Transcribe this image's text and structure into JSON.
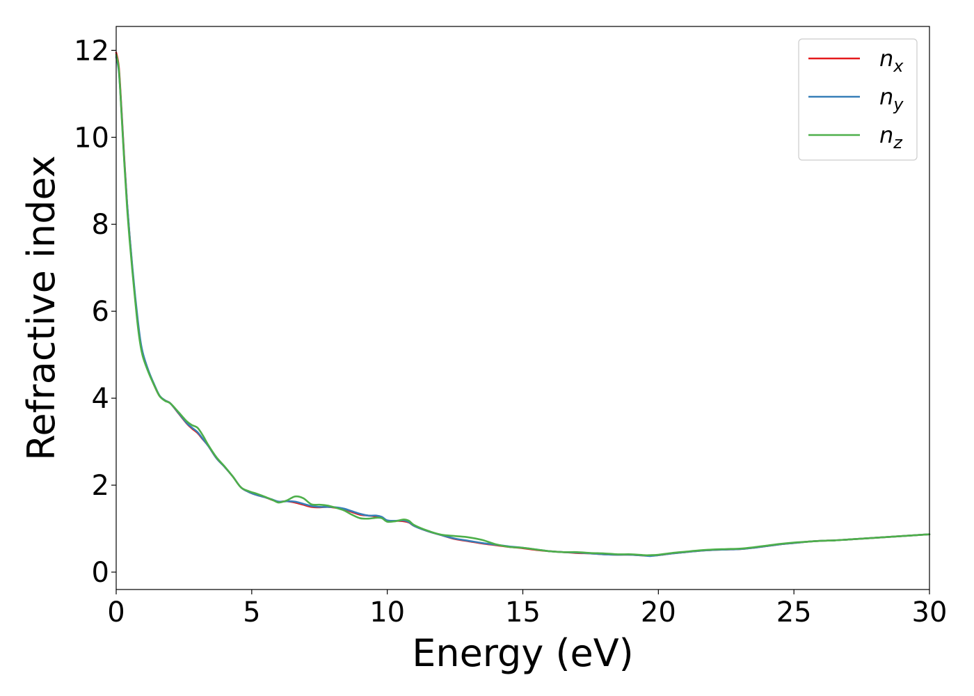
{
  "chart_data": {
    "type": "line",
    "title": "",
    "xlabel": "Energy (eV)",
    "ylabel": "Refractive index",
    "xlim": [
      0,
      30
    ],
    "ylim": [
      -0.4,
      12.55
    ],
    "xticks": [
      0,
      5,
      10,
      15,
      20,
      25,
      30
    ],
    "xtick_labels": [
      "0",
      "5",
      "10",
      "15",
      "20",
      "25",
      "30"
    ],
    "yticks": [
      0,
      2,
      4,
      6,
      8,
      10,
      12
    ],
    "ytick_labels": [
      "0",
      "2",
      "4",
      "6",
      "8",
      "10",
      "12"
    ],
    "grid": false,
    "legend_position": "top-right",
    "series": [
      {
        "name": "n_x",
        "label_base": "n",
        "label_sub": "x",
        "color": "#e41a1c",
        "x": [
          0,
          0.1,
          0.2,
          0.3,
          0.4,
          0.5,
          0.6,
          0.7,
          0.8,
          0.9,
          1.0,
          1.2,
          1.4,
          1.6,
          1.8,
          2.0,
          2.3,
          2.6,
          2.8,
          3.0,
          3.2,
          3.4,
          3.7,
          4.0,
          4.3,
          4.6,
          4.9,
          5.2,
          5.5,
          5.8,
          6.0,
          6.3,
          6.6,
          6.9,
          7.2,
          7.5,
          7.8,
          8.1,
          8.4,
          8.7,
          9.0,
          9.3,
          9.6,
          9.8,
          10.0,
          10.3,
          10.6,
          10.8,
          11.0,
          11.5,
          12.0,
          12.5,
          13.0,
          13.5,
          14.0,
          14.5,
          15.0,
          15.5,
          16.0,
          16.5,
          17.0,
          17.5,
          18.0,
          18.5,
          19.0,
          19.5,
          19.7,
          20.0,
          20.5,
          21.0,
          21.5,
          22.0,
          22.5,
          23.0,
          23.5,
          24.0,
          24.5,
          25.0,
          25.5,
          26.0,
          26.5,
          27.0,
          27.5,
          28.0,
          28.5,
          29.0,
          29.5,
          30.0
        ],
        "y": [
          11.95,
          11.6,
          10.6,
          9.5,
          8.5,
          7.7,
          6.95,
          6.3,
          5.7,
          5.25,
          4.95,
          4.6,
          4.3,
          4.05,
          3.95,
          3.88,
          3.65,
          3.42,
          3.3,
          3.2,
          3.05,
          2.9,
          2.62,
          2.42,
          2.2,
          1.95,
          1.84,
          1.77,
          1.72,
          1.65,
          1.62,
          1.63,
          1.6,
          1.55,
          1.5,
          1.49,
          1.5,
          1.48,
          1.45,
          1.38,
          1.32,
          1.3,
          1.28,
          1.25,
          1.18,
          1.18,
          1.17,
          1.14,
          1.06,
          0.94,
          0.85,
          0.76,
          0.71,
          0.66,
          0.62,
          0.58,
          0.55,
          0.51,
          0.48,
          0.46,
          0.44,
          0.43,
          0.41,
          0.4,
          0.4,
          0.38,
          0.38,
          0.39,
          0.43,
          0.46,
          0.49,
          0.51,
          0.52,
          0.53,
          0.56,
          0.6,
          0.64,
          0.67,
          0.7,
          0.72,
          0.73,
          0.75,
          0.77,
          0.79,
          0.81,
          0.83,
          0.85,
          0.87
        ]
      },
      {
        "name": "n_y",
        "label_base": "n",
        "label_sub": "y",
        "color": "#377eb8",
        "x": [
          0,
          0.1,
          0.2,
          0.3,
          0.4,
          0.5,
          0.6,
          0.7,
          0.8,
          0.9,
          1.0,
          1.2,
          1.4,
          1.6,
          1.8,
          2.0,
          2.3,
          2.6,
          2.8,
          3.0,
          3.2,
          3.4,
          3.7,
          4.0,
          4.3,
          4.6,
          4.9,
          5.2,
          5.5,
          5.8,
          6.0,
          6.3,
          6.6,
          6.9,
          7.2,
          7.5,
          7.8,
          8.1,
          8.4,
          8.7,
          9.0,
          9.3,
          9.6,
          9.8,
          10.0,
          10.3,
          10.6,
          10.8,
          11.0,
          11.5,
          12.0,
          12.5,
          13.0,
          13.5,
          14.0,
          14.5,
          15.0,
          15.5,
          16.0,
          16.5,
          17.0,
          17.5,
          18.0,
          18.5,
          19.0,
          19.5,
          19.7,
          20.0,
          20.5,
          21.0,
          21.5,
          22.0,
          22.5,
          23.0,
          23.5,
          24.0,
          24.5,
          25.0,
          25.5,
          26.0,
          26.5,
          27.0,
          27.5,
          28.0,
          28.5,
          29.0,
          29.5,
          30.0
        ],
        "y": [
          11.85,
          11.5,
          10.55,
          9.45,
          8.5,
          7.7,
          7.0,
          6.35,
          5.78,
          5.3,
          5.0,
          4.62,
          4.32,
          4.06,
          3.95,
          3.88,
          3.66,
          3.43,
          3.32,
          3.22,
          3.06,
          2.9,
          2.62,
          2.42,
          2.2,
          1.95,
          1.84,
          1.77,
          1.72,
          1.66,
          1.62,
          1.63,
          1.62,
          1.57,
          1.52,
          1.5,
          1.5,
          1.49,
          1.46,
          1.4,
          1.34,
          1.3,
          1.3,
          1.27,
          1.19,
          1.18,
          1.19,
          1.15,
          1.06,
          0.94,
          0.85,
          0.77,
          0.72,
          0.67,
          0.63,
          0.59,
          0.56,
          0.52,
          0.48,
          0.46,
          0.45,
          0.43,
          0.41,
          0.4,
          0.4,
          0.38,
          0.37,
          0.39,
          0.43,
          0.46,
          0.49,
          0.51,
          0.52,
          0.53,
          0.56,
          0.6,
          0.64,
          0.67,
          0.7,
          0.72,
          0.73,
          0.75,
          0.77,
          0.79,
          0.81,
          0.83,
          0.85,
          0.87
        ]
      },
      {
        "name": "n_z",
        "label_base": "n",
        "label_sub": "z",
        "color": "#4daf4a",
        "x": [
          0,
          0.1,
          0.2,
          0.3,
          0.4,
          0.5,
          0.6,
          0.7,
          0.8,
          0.9,
          1.0,
          1.2,
          1.4,
          1.6,
          1.8,
          2.0,
          2.3,
          2.6,
          2.8,
          3.0,
          3.2,
          3.4,
          3.7,
          4.0,
          4.3,
          4.6,
          4.9,
          5.2,
          5.5,
          5.8,
          6.0,
          6.3,
          6.6,
          6.9,
          7.2,
          7.5,
          7.8,
          8.1,
          8.4,
          8.7,
          9.0,
          9.3,
          9.6,
          9.8,
          10.0,
          10.3,
          10.6,
          10.8,
          11.0,
          11.5,
          12.0,
          12.5,
          13.0,
          13.5,
          14.0,
          14.5,
          15.0,
          15.5,
          16.0,
          16.5,
          17.0,
          17.5,
          18.0,
          18.5,
          19.0,
          19.5,
          19.7,
          20.0,
          20.5,
          21.0,
          21.5,
          22.0,
          22.5,
          23.0,
          23.5,
          24.0,
          24.5,
          25.0,
          25.5,
          26.0,
          26.5,
          27.0,
          27.5,
          28.0,
          28.5,
          29.0,
          29.5,
          30.0
        ],
        "y": [
          11.9,
          11.55,
          10.5,
          9.4,
          8.4,
          7.6,
          6.9,
          6.25,
          5.65,
          5.2,
          4.92,
          4.58,
          4.3,
          4.05,
          3.94,
          3.88,
          3.68,
          3.47,
          3.38,
          3.32,
          3.14,
          2.92,
          2.64,
          2.43,
          2.2,
          1.95,
          1.86,
          1.8,
          1.73,
          1.65,
          1.6,
          1.65,
          1.74,
          1.7,
          1.56,
          1.55,
          1.53,
          1.48,
          1.42,
          1.32,
          1.24,
          1.23,
          1.25,
          1.24,
          1.16,
          1.17,
          1.21,
          1.18,
          1.08,
          0.95,
          0.86,
          0.83,
          0.8,
          0.74,
          0.64,
          0.58,
          0.56,
          0.52,
          0.48,
          0.46,
          0.46,
          0.44,
          0.43,
          0.41,
          0.41,
          0.39,
          0.39,
          0.4,
          0.44,
          0.47,
          0.5,
          0.52,
          0.53,
          0.54,
          0.57,
          0.61,
          0.65,
          0.68,
          0.7,
          0.72,
          0.73,
          0.75,
          0.77,
          0.79,
          0.81,
          0.83,
          0.85,
          0.87
        ]
      }
    ]
  }
}
